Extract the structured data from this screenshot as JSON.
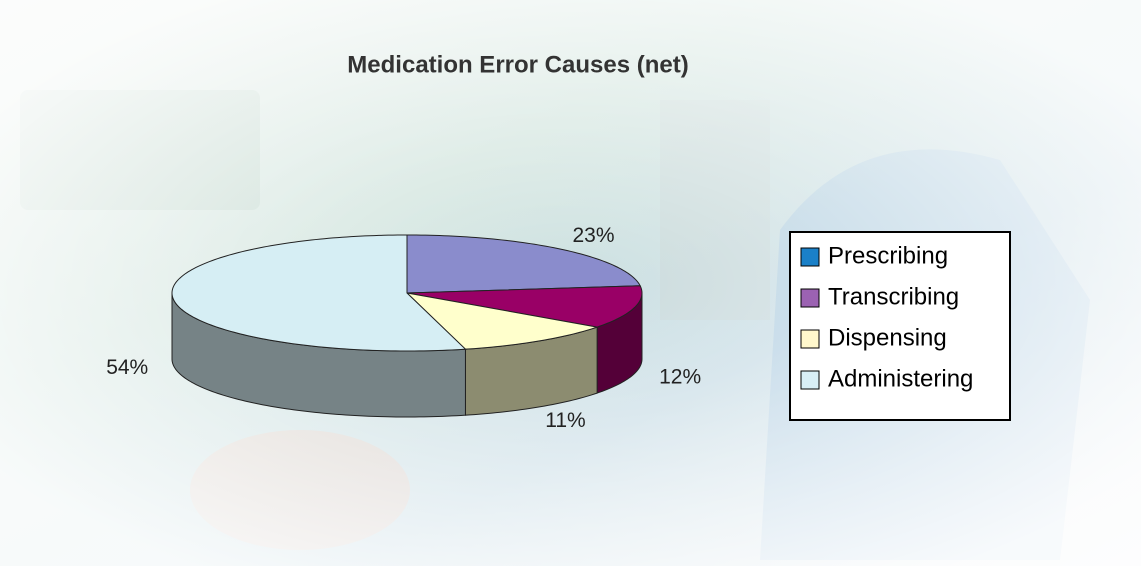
{
  "chart_data": {
    "type": "pie3d",
    "title": "Medication Error Causes (net)",
    "categories": [
      "Prescribing",
      "Transcribing",
      "Dispensing",
      "Administering"
    ],
    "values": [
      23,
      12,
      11,
      54
    ],
    "value_labels": [
      "23%",
      "12%",
      "11%",
      "54%"
    ],
    "colors": [
      "#8a8ccc",
      "#990066",
      "#ffffcc",
      "#d6eef4"
    ],
    "legend_colors": [
      "#1a80c8",
      "#9b62b2",
      "#fff8cc",
      "#d8eef6"
    ],
    "legend": "right"
  }
}
